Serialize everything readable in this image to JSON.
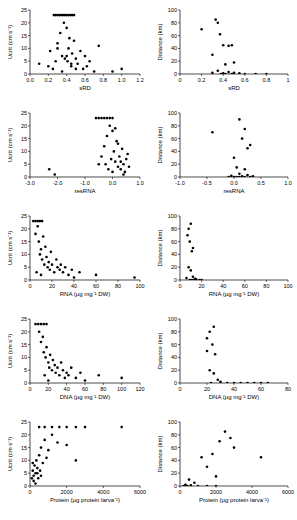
{
  "chart_data": [
    {
      "type": "scatter",
      "x_label": "sRD",
      "y_label": "Ucrit (cm s⁻¹)",
      "color": "#000000",
      "marker": "circle",
      "xlim": [
        0,
        1.2
      ],
      "ylim": [
        0,
        25
      ],
      "xticks": [
        {
          "value": 0,
          "label": "0.0"
        },
        0.2,
        0.4,
        0.6,
        0.8,
        {
          "value": 1,
          "label": "1.0"
        },
        1.2
      ],
      "yticks": [
        0,
        5,
        10,
        15,
        20,
        25
      ],
      "x": [
        0.26,
        0.28,
        0.3,
        0.32,
        0.34,
        0.36,
        0.38,
        0.4,
        0.42,
        0.44,
        0.46,
        0.48,
        0.1,
        0.2,
        0.22,
        0.25,
        0.28,
        0.3,
        0.33,
        0.35,
        0.37,
        0.38,
        0.4,
        0.41,
        0.42,
        0.43,
        0.45,
        0.46,
        0.48,
        0.5,
        0.52,
        0.55,
        0.58,
        0.6,
        0.62,
        0.65,
        0.7,
        0.75,
        0.4,
        0.45,
        0.5,
        0.35,
        0.9,
        1.0,
        0.3
      ],
      "y": [
        23,
        23,
        23,
        23,
        23,
        23,
        23,
        23,
        23,
        23,
        23,
        23,
        4,
        3,
        9,
        2,
        5,
        12,
        16,
        7,
        20,
        6,
        18,
        5,
        10,
        14,
        3,
        8,
        13,
        6,
        4,
        9,
        2,
        7,
        3,
        5,
        1,
        11,
        7,
        4,
        2,
        1,
        1,
        2,
        10
      ]
    },
    {
      "type": "scatter",
      "x_label": "sRD",
      "y_label": "Distance (km)",
      "color": "#000000",
      "marker": "circle",
      "xlim": [
        0,
        1
      ],
      "ylim": [
        0,
        100
      ],
      "xticks": [
        0,
        0.2,
        0.4,
        0.6,
        0.8,
        1
      ],
      "yticks": [
        0,
        20,
        40,
        60,
        80,
        100
      ],
      "x": [
        0.2,
        0.33,
        0.35,
        0.37,
        0.4,
        0.3,
        0.45,
        0.48,
        0.5,
        0.42,
        0.35,
        0.3,
        0.4,
        0.45,
        0.5,
        0.55,
        0.6,
        0.7,
        0.8,
        0.38,
        0.42,
        0.48
      ],
      "y": [
        70,
        85,
        80,
        62,
        45,
        30,
        44,
        45,
        18,
        15,
        5,
        2,
        1,
        3,
        2,
        1,
        0,
        0,
        0,
        0,
        0,
        0
      ]
    },
    {
      "type": "scatter",
      "x_label": "resRNA",
      "y_label": "Ucrit (cm s⁻¹)",
      "color": "#000000",
      "marker": "circle",
      "xlim": [
        -3,
        1
      ],
      "ylim": [
        0,
        25
      ],
      "xticks": [
        {
          "value": -3,
          "label": "-3.0"
        },
        {
          "value": -2,
          "label": "-2.0"
        },
        {
          "value": -1,
          "label": "-1.0"
        },
        {
          "value": 0,
          "label": "0.0"
        },
        {
          "value": 1,
          "label": "1.0"
        }
      ],
      "yticks": [
        0,
        5,
        10,
        15,
        20,
        25
      ],
      "x": [
        -0.6,
        -0.5,
        -0.4,
        -0.3,
        -0.2,
        -0.1,
        0.0,
        -2.3,
        -2.1,
        -0.5,
        -0.4,
        -0.3,
        -0.2,
        -0.1,
        0.0,
        0.05,
        0.1,
        0.15,
        0.2,
        0.25,
        0.3,
        0.35,
        0.4,
        0.45,
        0.5,
        0.55,
        -0.15,
        -0.05,
        0.1,
        0.2,
        0.3,
        0.0,
        -0.25,
        0.4,
        0.6
      ],
      "y": [
        23,
        23,
        23,
        23,
        23,
        23,
        23,
        3,
        1,
        5,
        8,
        12,
        16,
        20,
        18,
        10,
        6,
        14,
        4,
        8,
        3,
        11,
        5,
        2,
        7,
        9,
        3,
        7,
        19,
        13,
        6,
        2,
        5,
        1,
        4
      ]
    },
    {
      "type": "scatter",
      "x_label": "resRNA",
      "y_label": "Distance (km)",
      "color": "#000000",
      "marker": "circle",
      "xlim": [
        -1,
        1
      ],
      "ylim": [
        0,
        100
      ],
      "xticks": [
        {
          "value": -1,
          "label": "-1.0"
        },
        -0.5,
        {
          "value": 0,
          "label": "0.0"
        },
        0.5,
        {
          "value": 1,
          "label": "1.0"
        }
      ],
      "yticks": [
        0,
        20,
        40,
        60,
        80,
        100
      ],
      "x": [
        -0.4,
        0.1,
        0.2,
        0.15,
        0.3,
        0.25,
        0.0,
        0.05,
        0.2,
        0.1,
        -0.05,
        0,
        0.05,
        0.1,
        0.15,
        0.2,
        0.3,
        0.35,
        -0.1,
        0.25
      ],
      "y": [
        70,
        90,
        75,
        60,
        50,
        45,
        30,
        15,
        12,
        5,
        2,
        0,
        0,
        0,
        1,
        0,
        0,
        1,
        0,
        3
      ]
    },
    {
      "type": "scatter",
      "x_label": "RNA (µg mg⁻¹ DW)",
      "y_label": "Ucrit (cm s⁻¹)",
      "color": "#000000",
      "marker": "circle",
      "xlim": [
        0,
        100
      ],
      "ylim": [
        0,
        25
      ],
      "xticks": [
        0,
        20,
        40,
        60,
        80,
        100
      ],
      "yticks": [
        0,
        5,
        10,
        15,
        20,
        25
      ],
      "x": [
        3,
        5,
        7,
        9,
        11,
        5,
        7,
        8,
        10,
        12,
        9,
        11,
        13,
        14,
        15,
        16,
        17,
        18,
        19,
        20,
        22,
        24,
        25,
        27,
        28,
        30,
        32,
        35,
        38,
        40,
        45,
        60,
        95,
        6,
        10
      ],
      "y": [
        23,
        23,
        23,
        23,
        23,
        18,
        21,
        15,
        12,
        17,
        10,
        8,
        6,
        13,
        9,
        5,
        7,
        4,
        11,
        6,
        3,
        8,
        5,
        4,
        6,
        3,
        5,
        2,
        4,
        1,
        3,
        2,
        1,
        3,
        2
      ]
    },
    {
      "type": "scatter",
      "x_label": "RNA (µg mg⁻¹ DW)",
      "y_label": "Distance (km)",
      "color": "#000000",
      "marker": "circle",
      "xlim": [
        0,
        100
      ],
      "ylim": [
        0,
        100
      ],
      "xticks": [
        0,
        20,
        40,
        60,
        80,
        100
      ],
      "yticks": [
        0,
        20,
        40,
        60,
        80,
        100
      ],
      "x": [
        7,
        8,
        10,
        9,
        11,
        12,
        8,
        10,
        12,
        14,
        9,
        11,
        13,
        15,
        18,
        20,
        6
      ],
      "y": [
        70,
        80,
        88,
        60,
        45,
        50,
        20,
        15,
        5,
        2,
        0,
        0,
        0,
        1,
        0,
        0,
        3
      ]
    },
    {
      "type": "scatter",
      "x_label": "DNA (µg mg⁻¹ DW)",
      "y_label": "Ucrit (cm s⁻¹)",
      "color": "#000000",
      "marker": "circle",
      "xlim": [
        0,
        120
      ],
      "ylim": [
        0,
        25
      ],
      "xticks": [
        0,
        20,
        40,
        60,
        80,
        100,
        120
      ],
      "yticks": [
        0,
        5,
        10,
        15,
        20,
        25
      ],
      "x": [
        6,
        9,
        12,
        15,
        18,
        10,
        12,
        14,
        15,
        17,
        18,
        20,
        21,
        22,
        24,
        25,
        27,
        28,
        30,
        32,
        34,
        36,
        38,
        40,
        42,
        45,
        50,
        55,
        60,
        75,
        100,
        16,
        20
      ],
      "y": [
        23,
        23,
        23,
        23,
        23,
        20,
        16,
        18,
        12,
        10,
        14,
        8,
        6,
        11,
        5,
        9,
        7,
        4,
        6,
        3,
        8,
        5,
        2,
        4,
        3,
        6,
        2,
        4,
        1,
        3,
        2,
        3,
        1
      ]
    },
    {
      "type": "scatter",
      "x_label": "DNA (µg mg⁻¹ DW)",
      "y_label": "Distance (km)",
      "color": "#000000",
      "marker": "circle",
      "xlim": [
        0,
        80
      ],
      "ylim": [
        0,
        100
      ],
      "xticks": [
        0,
        20,
        40,
        60,
        80
      ],
      "yticks": [
        0,
        20,
        40,
        60,
        80,
        100
      ],
      "x": [
        20,
        22,
        25,
        24,
        26,
        20,
        22,
        25,
        28,
        30,
        35,
        40,
        45,
        50,
        55,
        60,
        65,
        23
      ],
      "y": [
        70,
        80,
        88,
        60,
        45,
        50,
        20,
        15,
        5,
        2,
        0,
        0,
        0,
        0,
        0,
        0,
        0,
        0
      ]
    },
    {
      "type": "scatter",
      "x_label": "Protein (µg protein larva⁻¹)",
      "y_label": "Ucrit (cm s⁻¹)",
      "color": "#000000",
      "marker": "circle",
      "xlim": [
        0,
        6000
      ],
      "ylim": [
        0,
        25
      ],
      "xticks": [
        0,
        2000,
        4000,
        6000
      ],
      "yticks": [
        0,
        5,
        10,
        15,
        20,
        25
      ],
      "x": [
        500,
        800,
        1200,
        1600,
        2000,
        2500,
        3000,
        5000,
        100,
        150,
        200,
        250,
        300,
        350,
        400,
        450,
        500,
        550,
        600,
        700,
        800,
        900,
        1000,
        1200,
        1500,
        2000,
        2500,
        300,
        200,
        400,
        150,
        600
      ],
      "y": [
        23,
        23,
        23,
        23,
        23,
        23,
        23,
        23,
        3,
        6,
        4,
        8,
        5,
        10,
        7,
        3,
        12,
        6,
        15,
        9,
        18,
        11,
        14,
        20,
        17,
        16,
        10,
        1,
        2,
        5,
        9,
        4
      ]
    },
    {
      "type": "scatter",
      "x_label": "Protein (µg protein larva⁻¹)",
      "y_label": "Distance (km)",
      "color": "#000000",
      "marker": "circle",
      "xlim": [
        0,
        6000
      ],
      "ylim": [
        0,
        100
      ],
      "xticks": [
        0,
        2000,
        4000,
        6000
      ],
      "yticks": [
        0,
        20,
        40,
        60,
        80,
        100
      ],
      "x": [
        500,
        300,
        800,
        1000,
        1500,
        1200,
        1500,
        1800,
        2000,
        2200,
        2500,
        2800,
        3000,
        4500,
        200,
        400,
        600,
        2000
      ],
      "y": [
        10,
        2,
        5,
        0,
        0,
        45,
        30,
        50,
        15,
        70,
        85,
        75,
        60,
        45,
        0,
        0,
        1,
        0
      ]
    }
  ]
}
